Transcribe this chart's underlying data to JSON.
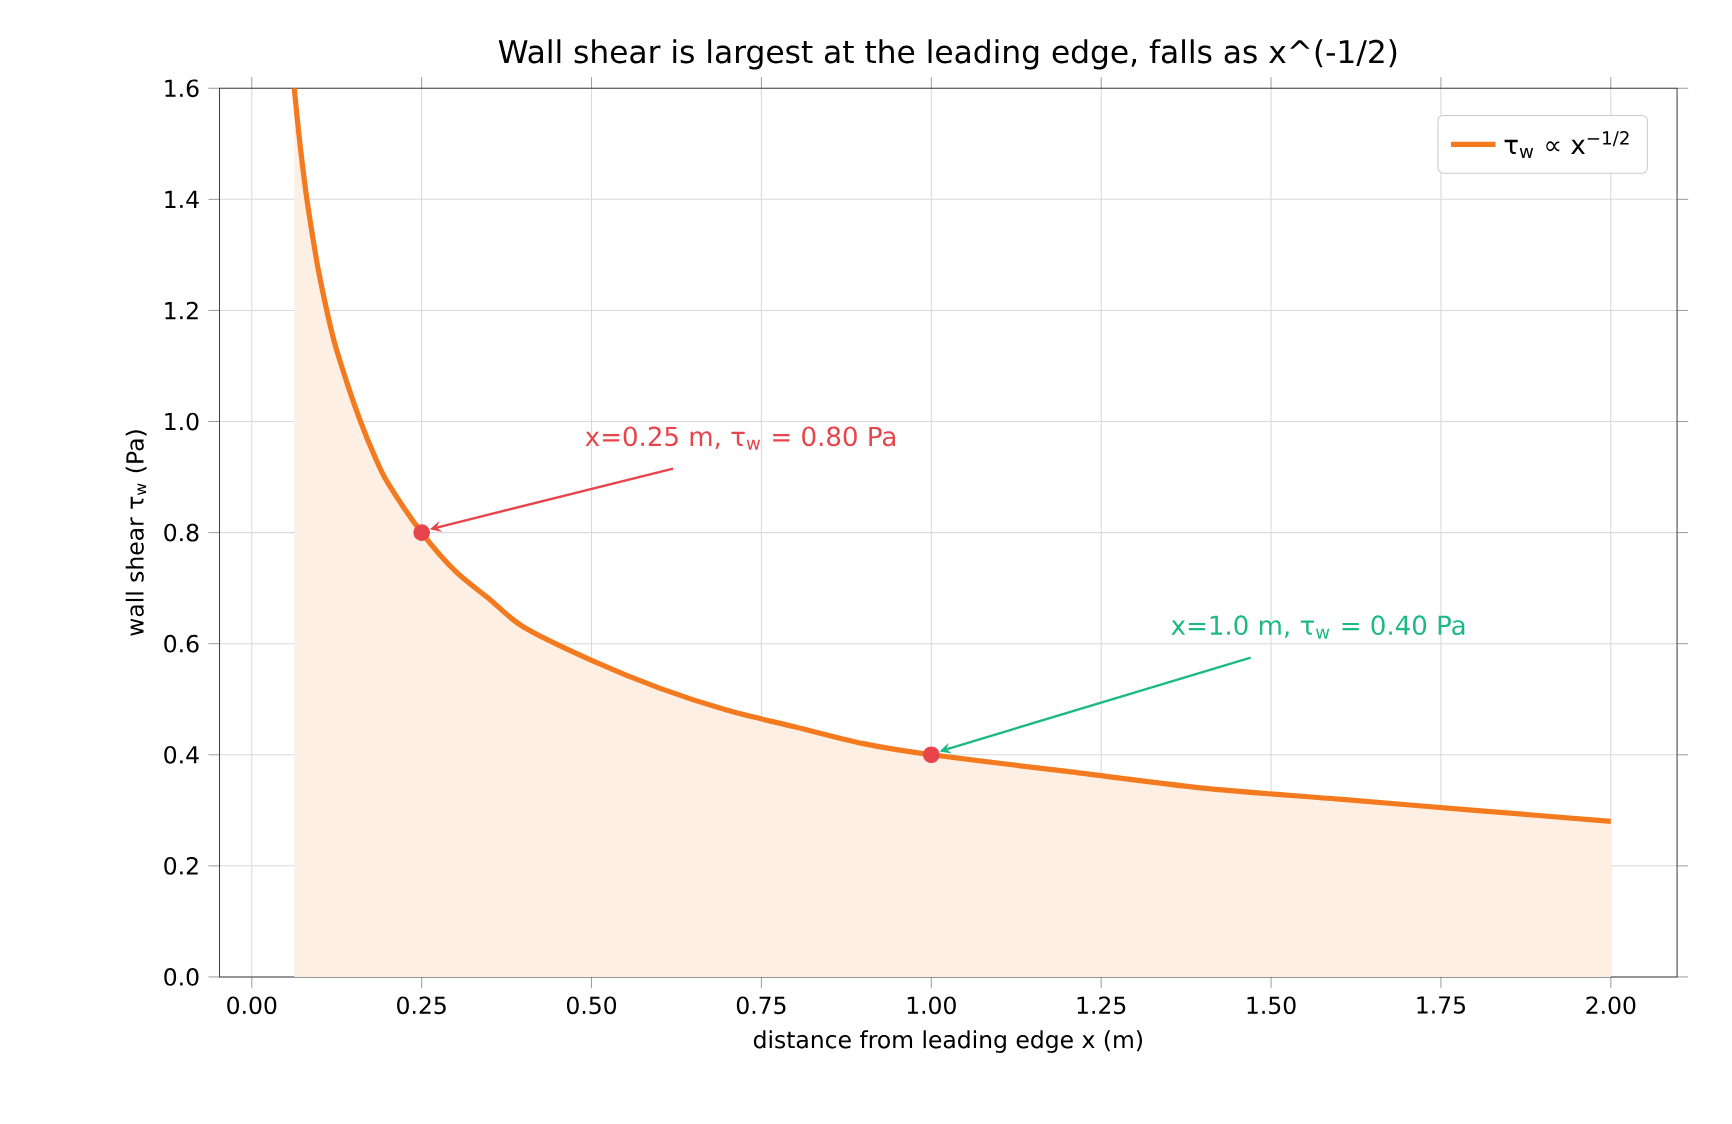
{
  "chart_data": {
    "type": "area",
    "title": "Wall shear is largest at the leading edge, falls as x^(-1/2)",
    "xlabel": "distance from leading edge  x  (m)",
    "ylabel": "wall shear  τ$_{w}$  (Pa)",
    "x": [
      0.0625,
      0.07,
      0.08,
      0.09,
      0.1,
      0.12,
      0.14,
      0.16,
      0.18,
      0.2,
      0.25,
      0.3,
      0.35,
      0.4,
      0.5,
      0.6,
      0.7,
      0.8,
      0.9,
      1.0,
      1.2,
      1.4,
      1.6,
      1.8,
      2.0
    ],
    "series": [
      {
        "name": "τ$_{w}$ ∝ x$^{−1/2}$",
        "color": "#f47a1f",
        "values": [
          1.6,
          1.51,
          1.41,
          1.33,
          1.26,
          1.15,
          1.07,
          1.0,
          0.94,
          0.89,
          0.8,
          0.73,
          0.68,
          0.63,
          0.57,
          0.52,
          0.48,
          0.45,
          0.42,
          0.4,
          0.37,
          0.34,
          0.32,
          0.3,
          0.28
        ]
      },
      {
        "type": "scatter",
        "marker": "circle",
        "color": "#e8454a",
        "x": [
          0.25,
          1.0
        ],
        "values": [
          0.8,
          0.4
        ]
      }
    ],
    "annotations": [
      {
        "text": "x=0.25 m,  τ$_{w}$ = 0.80 Pa",
        "x": 0.25,
        "y": 0.8
      },
      {
        "text": "x=1.0 m,  τ$_{w}$ = 0.40 Pa",
        "x": 1.0,
        "y": 0.4
      }
    ],
    "xlim": [
      -0.0475,
      2.0975
    ],
    "ylim": [
      0,
      1.6
    ],
    "xticks": [
      {
        "value": 0,
        "label": "0.00"
      },
      {
        "value": 0.25,
        "label": "0.25"
      },
      {
        "value": 0.5,
        "label": "0.50"
      },
      {
        "value": 0.75,
        "label": "0.75"
      },
      {
        "value": 1.0,
        "label": "1.00"
      },
      {
        "value": 1.25,
        "label": "1.25"
      },
      {
        "value": 1.5,
        "label": "1.50"
      },
      {
        "value": 1.75,
        "label": "1.75"
      },
      {
        "value": 2.0,
        "label": "2.00"
      }
    ],
    "yticks": [
      {
        "value": 0,
        "label": "0.0"
      },
      {
        "value": 0.2,
        "label": "0.2"
      },
      {
        "value": 0.4,
        "label": "0.4"
      },
      {
        "value": 0.6,
        "label": "0.6"
      },
      {
        "value": 0.8,
        "label": "0.8"
      },
      {
        "value": 1.0,
        "label": "1.0"
      },
      {
        "value": 1.2,
        "label": "1.2"
      },
      {
        "value": 1.4,
        "label": "1.4"
      },
      {
        "value": 1.6,
        "label": "1.6"
      }
    ],
    "grid": true,
    "legend": "top right"
  }
}
